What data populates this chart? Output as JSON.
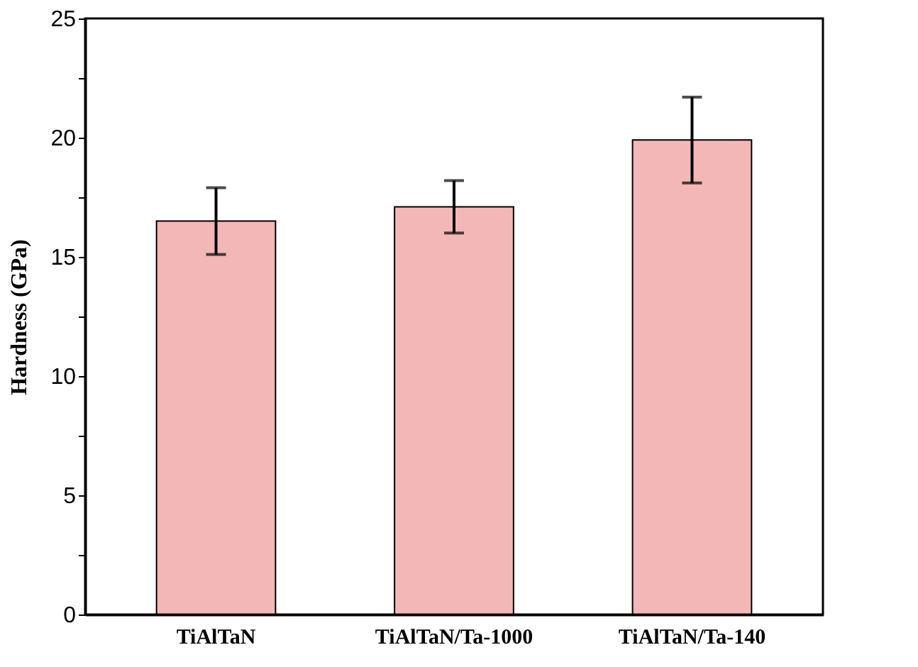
{
  "chart_data": {
    "type": "bar",
    "ylabel": "Hardness (GPa)",
    "categories": [
      "TiAlTaN",
      "TiAlTaN/Ta-1000",
      "TiAlTaN/Ta-140"
    ],
    "values": [
      16.5,
      17.1,
      19.9
    ],
    "errors": [
      1.4,
      1.1,
      1.8
    ],
    "color": "#e03030",
    "ylim": [
      0,
      25
    ],
    "yticks": [
      0,
      {
        "value": 2.5,
        "label": null
      },
      5,
      {
        "value": 7.5,
        "label": null
      },
      10,
      {
        "value": 12.5,
        "label": null
      },
      15,
      {
        "value": 17.5,
        "label": null
      },
      20,
      {
        "value": 22.5,
        "label": null
      },
      25
    ],
    "grid": false
  }
}
